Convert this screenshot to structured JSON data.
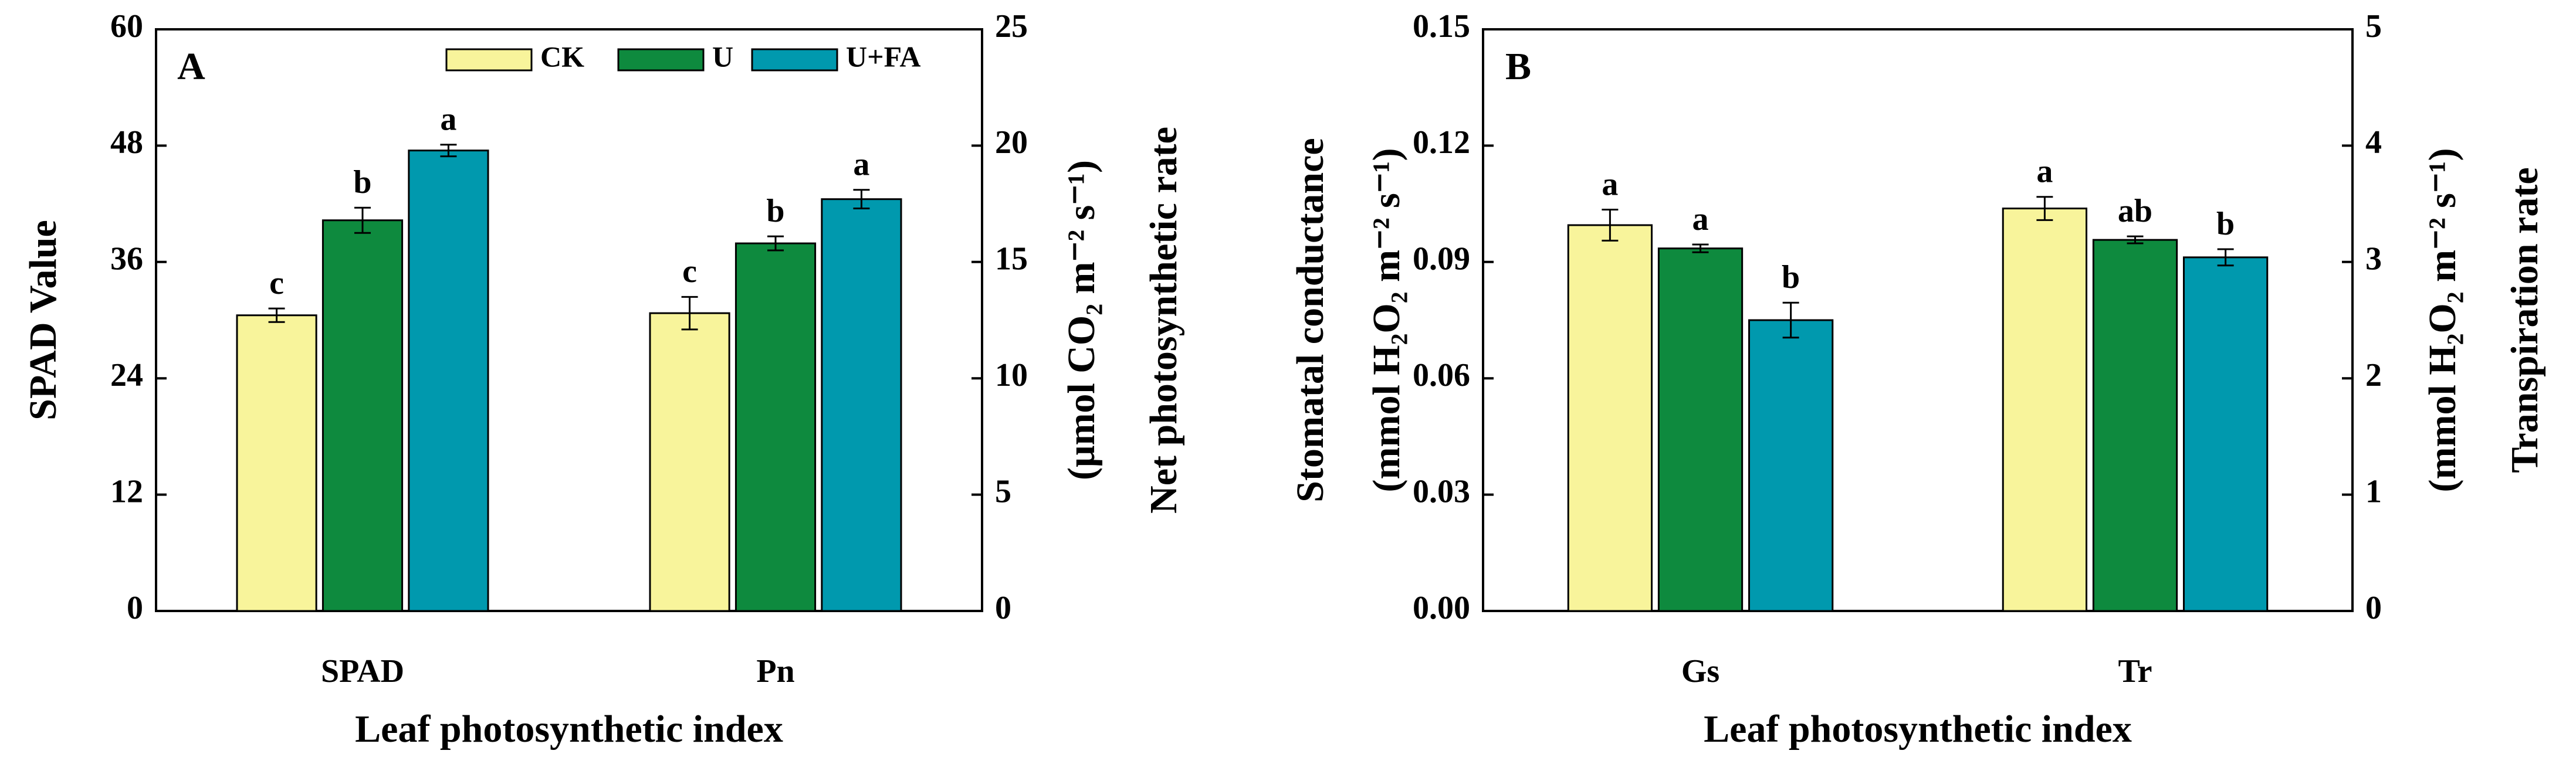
{
  "chart_data": [
    {
      "type": "bar",
      "panel": "A",
      "xlabel": "Leaf photosynthetic index",
      "ylabel": "SPAD Value",
      "y2label": "Net photosynthetic rate",
      "y2unit": "(μmol CO₂ m⁻² s⁻¹)",
      "categories": [
        "SPAD",
        "Pn"
      ],
      "category_axis": [
        "y",
        "y2"
      ],
      "ylim": [
        0,
        60
      ],
      "yticks": [
        0,
        12,
        24,
        36,
        48,
        60
      ],
      "y2lim": [
        0,
        25
      ],
      "y2ticks": [
        0,
        5,
        10,
        15,
        20,
        25
      ],
      "legend": "top-right",
      "series": [
        {
          "name": "CK",
          "color": "#f8f49b",
          "values": [
            30.5,
            12.8
          ],
          "errors": [
            0.7,
            0.7
          ],
          "letters": [
            "c",
            "c"
          ]
        },
        {
          "name": "U",
          "color": "#0e8a3e",
          "values": [
            40.3,
            15.8
          ],
          "errors": [
            1.3,
            0.3
          ],
          "letters": [
            "b",
            "b"
          ]
        },
        {
          "name": "U+FA",
          "color": "#0099ae",
          "values": [
            47.5,
            17.7
          ],
          "errors": [
            0.6,
            0.4
          ],
          "letters": [
            "a",
            "a"
          ]
        }
      ]
    },
    {
      "type": "bar",
      "panel": "B",
      "xlabel": "Leaf photosynthetic index",
      "ylabel": "Stomatal conductance",
      "yunit": "(mmol H₂O₂ m⁻² s⁻¹)",
      "y2label": "Transpiration rate",
      "y2unit": "(mmol H₂O₂ m⁻² s⁻¹)",
      "categories": [
        "Gs",
        "Tr"
      ],
      "category_axis": [
        "y",
        "y2"
      ],
      "ylim": [
        0,
        0.15
      ],
      "yticks": [
        {
          "value": 0,
          "label": "0.00"
        },
        {
          "value": 0.03,
          "label": "0.03"
        },
        {
          "value": 0.06,
          "label": "0.06"
        },
        {
          "value": 0.09,
          "label": "0.09"
        },
        {
          "value": 0.12,
          "label": "0.12"
        },
        {
          "value": 0.15,
          "label": "0.15"
        }
      ],
      "y2lim": [
        0,
        5
      ],
      "y2ticks": [
        0,
        1,
        2,
        3,
        4,
        5
      ],
      "series": [
        {
          "name": "CK",
          "color": "#f8f49b",
          "values": [
            0.0995,
            3.46
          ],
          "errors": [
            0.004,
            0.1
          ],
          "letters": [
            "a",
            "a"
          ]
        },
        {
          "name": "U",
          "color": "#0e8a3e",
          "values": [
            0.0935,
            3.19
          ],
          "errors": [
            0.001,
            0.03
          ],
          "letters": [
            "a",
            "ab"
          ]
        },
        {
          "name": "U+FA",
          "color": "#0099ae",
          "values": [
            0.075,
            3.04
          ],
          "errors": [
            0.0045,
            0.07
          ],
          "letters": [
            "b",
            "b"
          ]
        }
      ]
    }
  ]
}
